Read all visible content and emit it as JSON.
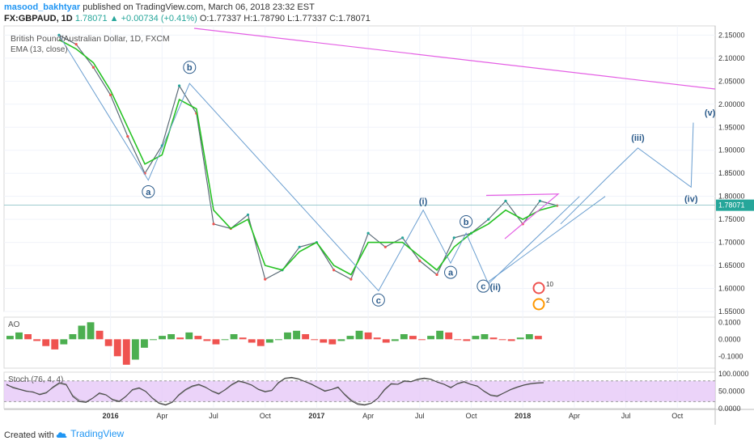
{
  "header": {
    "author": "masood_bakhtyar",
    "published_text": "published on TradingView.com, March 06, 2018 23:32 EST",
    "symbol": "FX:GBPAUD, 1D",
    "last": "1.78071",
    "change": "+0.00734 (+0.41%)",
    "open": "O:1.77337",
    "high": "H:1.78790",
    "low": "L:1.77337",
    "close": "C:1.78071"
  },
  "overlay": {
    "title": "British Pound/Australian Dollar, 1D, FXCM",
    "indicator": "EMA (13, close)"
  },
  "footer": {
    "created_with": "Created with",
    "brand": "TradingView"
  },
  "colors": {
    "accent": "#2196f3",
    "ema": "#27c224",
    "wave": "#6a9ed0",
    "magenta": "#e45fe4",
    "stoch_fill": "#e6c8f7",
    "ao_up": "#4caf50",
    "ao_down": "#ef5350"
  },
  "chart_data": {
    "type": "line",
    "title": "British Pound/Australian Dollar, 1D, FXCM",
    "current_price": 1.78071,
    "current_price_label": "1.78071",
    "xlabel": "",
    "ylabel": "",
    "x_ticks": [
      "2016",
      "Apr",
      "Jul",
      "Oct",
      "2017",
      "Apr",
      "Jul",
      "Oct",
      "2018",
      "Apr",
      "Jul",
      "Oct"
    ],
    "y_ticks": [
      "2.15000",
      "2.10000",
      "2.05000",
      "2.00000",
      "1.95000",
      "1.90000",
      "1.85000",
      "1.80000",
      "1.75000",
      "1.70000",
      "1.65000",
      "1.60000",
      "1.55000"
    ],
    "ylim": [
      1.55,
      2.17
    ],
    "price_series": {
      "name": "GBPAUD",
      "x": [
        "2015-10",
        "2015-11",
        "2015-12",
        "2016-01",
        "2016-02",
        "2016-03",
        "2016-04",
        "2016-05",
        "2016-06",
        "2016-07",
        "2016-08",
        "2016-09",
        "2016-10",
        "2016-11",
        "2016-12",
        "2017-01",
        "2017-02",
        "2017-03",
        "2017-04",
        "2017-05",
        "2017-06",
        "2017-07",
        "2017-08",
        "2017-09",
        "2017-10",
        "2017-11",
        "2017-12",
        "2018-01",
        "2018-02",
        "2018-03"
      ],
      "values": [
        2.15,
        2.13,
        2.08,
        2.02,
        1.93,
        1.85,
        1.91,
        2.04,
        1.98,
        1.74,
        1.73,
        1.76,
        1.62,
        1.64,
        1.69,
        1.7,
        1.64,
        1.62,
        1.72,
        1.69,
        1.71,
        1.66,
        1.63,
        1.71,
        1.72,
        1.75,
        1.79,
        1.74,
        1.79,
        1.78
      ]
    },
    "ema_series": {
      "name": "EMA (13, close)",
      "x": [
        "2015-10",
        "2015-11",
        "2015-12",
        "2016-01",
        "2016-02",
        "2016-03",
        "2016-04",
        "2016-05",
        "2016-06",
        "2016-07",
        "2016-08",
        "2016-09",
        "2016-10",
        "2016-11",
        "2016-12",
        "2017-01",
        "2017-02",
        "2017-03",
        "2017-04",
        "2017-05",
        "2017-06",
        "2017-07",
        "2017-08",
        "2017-09",
        "2017-10",
        "2017-11",
        "2017-12",
        "2018-01",
        "2018-02",
        "2018-03"
      ],
      "values": [
        2.14,
        2.12,
        2.09,
        2.03,
        1.95,
        1.87,
        1.89,
        2.01,
        1.99,
        1.77,
        1.73,
        1.75,
        1.65,
        1.64,
        1.68,
        1.7,
        1.65,
        1.63,
        1.7,
        1.7,
        1.7,
        1.67,
        1.64,
        1.69,
        1.72,
        1.74,
        1.77,
        1.75,
        1.77,
        1.78
      ]
    },
    "wave_labels": [
      {
        "text": "b",
        "circled": true
      },
      {
        "text": "a",
        "circled": true
      },
      {
        "text": "c",
        "circled": true
      },
      {
        "text": "(i)",
        "circled": false
      },
      {
        "text": "a",
        "circled": true
      },
      {
        "text": "b",
        "circled": true
      },
      {
        "text": "c",
        "circled": true
      },
      {
        "text": "(ii)",
        "circled": false
      },
      {
        "text": "(iii)",
        "circled": false
      },
      {
        "text": "(iv)",
        "circled": false
      },
      {
        "text": "(v)",
        "circled": false
      }
    ],
    "event_badges": [
      "10",
      "2"
    ],
    "ao_panel": {
      "name": "AO",
      "y_ticks": [
        "0.1000",
        "0.0000",
        "-0.1000"
      ],
      "ylim": [
        -0.17,
        0.13
      ],
      "values": [
        0.02,
        0.04,
        0.03,
        -0.01,
        -0.04,
        -0.06,
        -0.03,
        0.03,
        0.08,
        0.1,
        0.05,
        -0.04,
        -0.1,
        -0.15,
        -0.12,
        -0.05,
        0.0,
        0.02,
        0.03,
        0.01,
        0.04,
        0.02,
        -0.01,
        -0.03,
        0.0,
        0.03,
        0.01,
        -0.02,
        -0.04,
        -0.02,
        0.0,
        0.04,
        0.05,
        0.03,
        0.0,
        -0.02,
        -0.03,
        -0.01,
        0.02,
        0.05,
        0.04,
        0.01,
        -0.02,
        -0.01,
        0.03,
        0.02,
        0.0,
        0.02,
        0.05,
        0.04,
        0.0,
        -0.01,
        0.02,
        0.03,
        0.01,
        0.0,
        -0.01,
        0.01,
        0.03,
        0.02
      ]
    },
    "stoch_panel": {
      "name": "Stoch (76, 4, 4)",
      "y_ticks": [
        "100.0000",
        "50.0000",
        "0.0000"
      ],
      "ylim": [
        0,
        105
      ],
      "band": [
        20,
        80
      ],
      "k_values": [
        70,
        60,
        55,
        50,
        48,
        40,
        45,
        62,
        75,
        70,
        35,
        20,
        18,
        30,
        45,
        40,
        25,
        20,
        35,
        55,
        60,
        50,
        30,
        15,
        10,
        18,
        40,
        55,
        65,
        70,
        62,
        50,
        42,
        55,
        70,
        80,
        75,
        68,
        55,
        48,
        52,
        75,
        88,
        90,
        86,
        78,
        70,
        60,
        50,
        55,
        62,
        40,
        22,
        12,
        10,
        15,
        30,
        55,
        72,
        70,
        80,
        78,
        85,
        88,
        85,
        76,
        70,
        60,
        72,
        78,
        70,
        65,
        50,
        38,
        35,
        45,
        55,
        62,
        68,
        72,
        74,
        75
      ],
      "d_values": [
        68,
        62,
        56,
        51,
        47,
        42,
        47,
        60,
        72,
        68,
        38,
        24,
        20,
        30,
        43,
        39,
        27,
        22,
        36,
        53,
        58,
        49,
        31,
        17,
        12,
        19,
        38,
        53,
        63,
        68,
        61,
        51,
        44,
        54,
        68,
        78,
        74,
        67,
        56,
        50,
        53,
        73,
        86,
        88,
        85,
        78,
        71,
        61,
        52,
        55,
        60,
        42,
        25,
        15,
        12,
        16,
        30,
        53,
        70,
        70,
        78,
        77,
        83,
        86,
        84,
        76,
        70,
        62,
        71,
        76,
        70,
        64,
        51,
        40,
        37,
        45,
        54,
        61,
        67,
        71,
        73,
        74
      ]
    }
  }
}
